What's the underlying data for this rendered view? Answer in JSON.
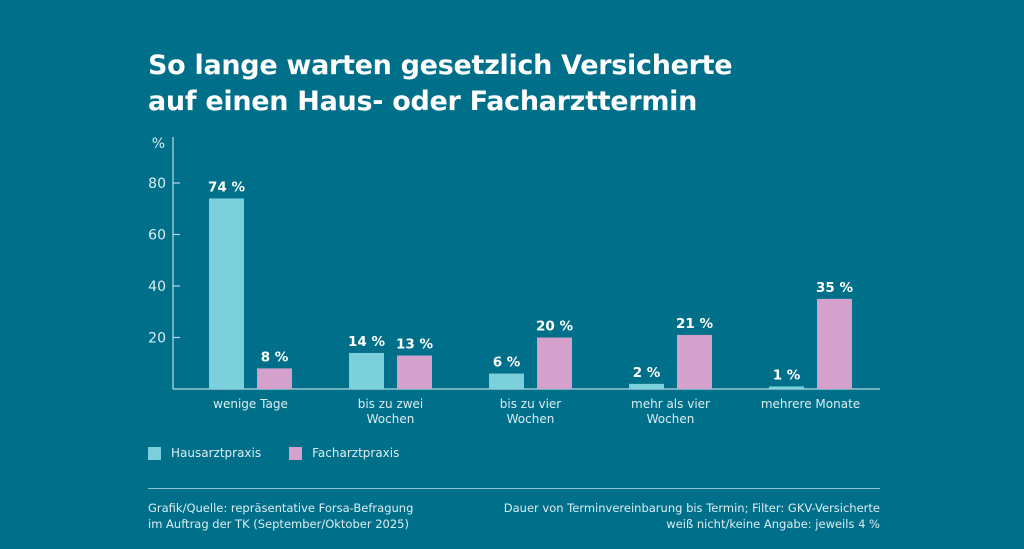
{
  "title_line1": "So lange warten gesetzlich Versicherte",
  "title_line2": "auf einen Haus- oder Facharzttermin",
  "colors": {
    "background": "#006f8a",
    "hausarztpraxis": "#7bd0dc",
    "facharztpraxis": "#d4a0cc",
    "axis": "#b5dbe4"
  },
  "chart_data": {
    "type": "bar",
    "title": "So lange warten gesetzlich Versicherte auf einen Haus- oder Facharzttermin",
    "xlabel": "",
    "ylabel": "%",
    "ylim": [
      0,
      94
    ],
    "yticks": [
      20,
      40,
      60,
      80
    ],
    "grid": false,
    "legend_position": "bottom-left",
    "categories": [
      [
        "wenige Tage"
      ],
      [
        "bis zu zwei",
        "Wochen"
      ],
      [
        "bis zu vier",
        "Wochen"
      ],
      [
        "mehr als vier",
        "Wochen"
      ],
      [
        "mehrere Monate"
      ]
    ],
    "series": [
      {
        "name": "Hausarztpraxis",
        "values": [
          74,
          14,
          6,
          2,
          1
        ],
        "labels": [
          "74 %",
          "14 %",
          "6 %",
          "2 %",
          "1 %"
        ]
      },
      {
        "name": "Facharztpraxis",
        "values": [
          8,
          13,
          20,
          21,
          35
        ],
        "labels": [
          "8 %",
          "13 %",
          "20 %",
          "21 %",
          "35 %"
        ]
      }
    ]
  },
  "legend": [
    {
      "label": "Hausarztpraxis"
    },
    {
      "label": "Facharztpraxis"
    }
  ],
  "footer": {
    "source_line1": "Grafik/Quelle: repräsentative Forsa-Befragung",
    "source_line2": "im Auftrag der TK (September/Oktober 2025)",
    "note_line1": "Dauer von Terminvereinbarung bis Termin; Filter: GKV-Versicherte",
    "note_line2": "weiß nicht/keine Angabe: jeweils 4 %"
  }
}
